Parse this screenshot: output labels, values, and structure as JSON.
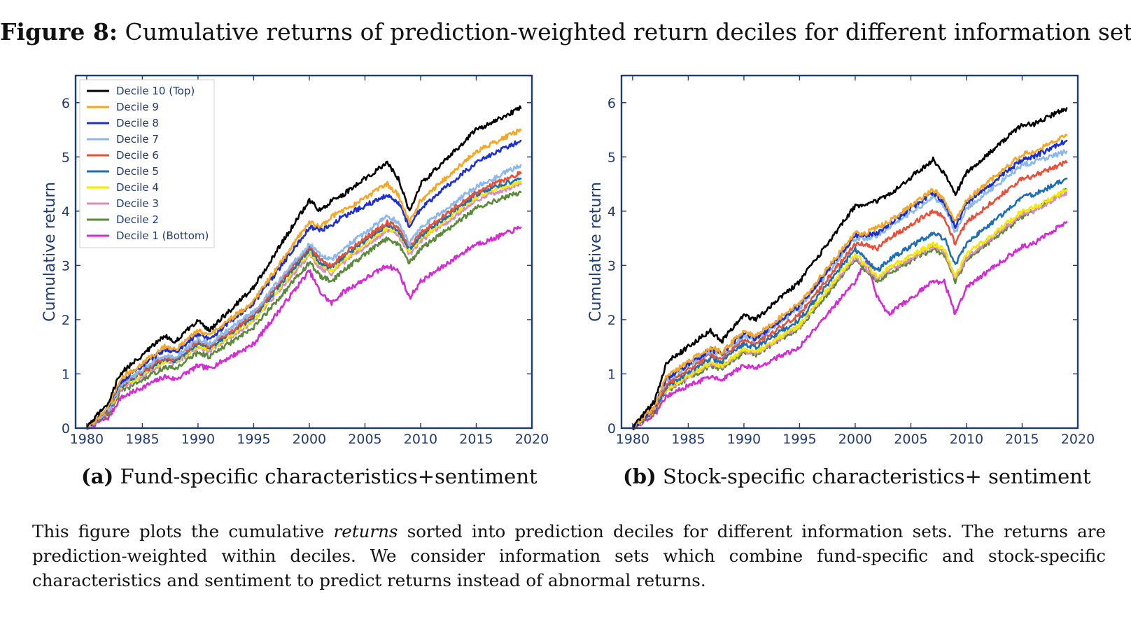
{
  "figure": {
    "label": "Figure 8:",
    "title": "Cumulative returns of prediction-weighted return deciles for different information sets.",
    "description": {
      "part1": "This figure plots the cumulative ",
      "emph": "returns",
      "part2": " sorted into prediction deciles for different information sets. The returns are prediction-weighted within deciles. We consider information sets which combine fund-specific and stock-specific characteristics and sentiment to predict returns instead of abnormal returns."
    }
  },
  "chart_data": [
    {
      "type": "line",
      "panel_label": "(a)",
      "caption": "Fund-specific characteristics+sentiment",
      "ylabel": "Cumulative return",
      "xlabel": "",
      "xlim": [
        1979,
        2020
      ],
      "ylim": [
        0,
        6.5
      ],
      "xticks": [
        1980,
        1985,
        1990,
        1995,
        2000,
        2005,
        2010,
        2015,
        2020
      ],
      "yticks": [
        0,
        1,
        2,
        3,
        4,
        5,
        6
      ],
      "legend": "top-left",
      "x": [
        1980,
        1982,
        1983,
        1987,
        1988,
        1990,
        1991,
        1995,
        2000,
        2001,
        2002,
        2003,
        2007,
        2008,
        2009,
        2010,
        2015,
        2016,
        2019
      ],
      "series": [
        {
          "name": "Decile 10 (Top)",
          "color": "#000000",
          "values": [
            0.0,
            0.5,
            1.0,
            1.7,
            1.6,
            2.0,
            1.8,
            2.6,
            4.2,
            4.0,
            4.2,
            4.3,
            4.9,
            4.6,
            4.0,
            4.5,
            5.5,
            5.6,
            5.9
          ]
        },
        {
          "name": "Decile 9",
          "color": "#f5a623",
          "values": [
            0.0,
            0.4,
            0.9,
            1.5,
            1.45,
            1.8,
            1.7,
            2.35,
            3.8,
            3.7,
            3.9,
            4.0,
            4.5,
            4.3,
            3.8,
            4.2,
            5.1,
            5.2,
            5.5
          ]
        },
        {
          "name": "Decile 8",
          "color": "#1c2ed8",
          "values": [
            0.0,
            0.4,
            0.85,
            1.45,
            1.4,
            1.75,
            1.65,
            2.3,
            3.7,
            3.65,
            3.75,
            3.9,
            4.3,
            4.15,
            3.7,
            4.05,
            4.9,
            5.0,
            5.3
          ]
        },
        {
          "name": "Decile 7",
          "color": "#8ab8f0",
          "values": [
            0.0,
            0.35,
            0.8,
            1.35,
            1.3,
            1.65,
            1.55,
            2.15,
            3.4,
            3.2,
            3.1,
            3.3,
            3.9,
            3.8,
            3.4,
            3.7,
            4.45,
            4.55,
            4.85
          ]
        },
        {
          "name": "Decile 6",
          "color": "#e8503a",
          "values": [
            0.0,
            0.35,
            0.78,
            1.3,
            1.28,
            1.6,
            1.5,
            2.1,
            3.35,
            3.1,
            3.0,
            3.2,
            3.8,
            3.7,
            3.35,
            3.6,
            4.35,
            4.45,
            4.7
          ]
        },
        {
          "name": "Decile 5",
          "color": "#1a6fb8",
          "values": [
            0.0,
            0.33,
            0.76,
            1.28,
            1.25,
            1.57,
            1.48,
            2.05,
            3.3,
            3.05,
            2.95,
            3.15,
            3.75,
            3.65,
            3.3,
            3.55,
            4.3,
            4.4,
            4.6
          ]
        },
        {
          "name": "Decile 4",
          "color": "#f2ea00",
          "values": [
            0.0,
            0.32,
            0.74,
            1.25,
            1.22,
            1.53,
            1.45,
            2.0,
            3.25,
            3.0,
            2.9,
            3.1,
            3.7,
            3.6,
            3.25,
            3.5,
            4.25,
            4.35,
            4.55
          ]
        },
        {
          "name": "Decile 3",
          "color": "#d98cc0",
          "values": [
            0.0,
            0.31,
            0.72,
            1.22,
            1.2,
            1.5,
            1.42,
            1.97,
            3.2,
            2.95,
            2.85,
            3.05,
            3.65,
            3.55,
            3.2,
            3.45,
            4.2,
            4.3,
            4.5
          ]
        },
        {
          "name": "Decile 2",
          "color": "#5a8a3a",
          "values": [
            0.0,
            0.28,
            0.66,
            1.12,
            1.1,
            1.4,
            1.32,
            1.85,
            3.05,
            2.8,
            2.7,
            2.9,
            3.5,
            3.4,
            3.05,
            3.3,
            4.05,
            4.15,
            4.35
          ]
        },
        {
          "name": "Decile 1 (Bottom)",
          "color": "#d62ad6",
          "values": [
            0.0,
            0.2,
            0.55,
            0.95,
            0.9,
            1.15,
            1.1,
            1.55,
            2.9,
            2.5,
            2.3,
            2.5,
            3.0,
            2.9,
            2.4,
            2.7,
            3.4,
            3.45,
            3.7
          ]
        }
      ]
    },
    {
      "type": "line",
      "panel_label": "(b)",
      "caption": "Stock-specific characteristics+ sentiment",
      "ylabel": "Cumulative return",
      "xlabel": "",
      "xlim": [
        1979,
        2020
      ],
      "ylim": [
        0,
        6.5
      ],
      "xticks": [
        1980,
        1985,
        1990,
        1995,
        2000,
        2005,
        2010,
        2015,
        2020
      ],
      "yticks": [
        0,
        1,
        2,
        3,
        4,
        5,
        6
      ],
      "legend": "none",
      "x": [
        1980,
        1982,
        1983,
        1987,
        1988,
        1990,
        1991,
        1995,
        2000,
        2001,
        2002,
        2003,
        2007,
        2008,
        2009,
        2010,
        2015,
        2016,
        2019
      ],
      "series": [
        {
          "name": "Decile 10 (Top)",
          "color": "#000000",
          "values": [
            0.0,
            0.5,
            1.2,
            1.8,
            1.6,
            2.1,
            2.0,
            2.7,
            4.1,
            4.1,
            4.2,
            4.3,
            4.95,
            4.7,
            4.3,
            4.7,
            5.6,
            5.6,
            5.9
          ]
        },
        {
          "name": "Decile 9",
          "color": "#f5a623",
          "values": [
            0.0,
            0.4,
            0.95,
            1.5,
            1.4,
            1.8,
            1.7,
            2.3,
            3.6,
            3.6,
            3.7,
            3.8,
            4.4,
            4.2,
            3.8,
            4.2,
            5.05,
            5.1,
            5.4
          ]
        },
        {
          "name": "Decile 8",
          "color": "#1c2ed8",
          "values": [
            0.0,
            0.4,
            0.9,
            1.45,
            1.38,
            1.75,
            1.65,
            2.25,
            3.55,
            3.55,
            3.6,
            3.75,
            4.35,
            4.15,
            3.7,
            4.15,
            4.95,
            5.0,
            5.3
          ]
        },
        {
          "name": "Decile 7",
          "color": "#8ab8f0",
          "values": [
            0.0,
            0.38,
            0.88,
            1.42,
            1.35,
            1.72,
            1.62,
            2.2,
            3.5,
            3.5,
            3.55,
            3.7,
            4.25,
            4.1,
            3.6,
            4.05,
            4.85,
            4.9,
            5.1
          ]
        },
        {
          "name": "Decile 6",
          "color": "#e8503a",
          "values": [
            0.0,
            0.35,
            0.8,
            1.35,
            1.3,
            1.65,
            1.55,
            2.1,
            3.4,
            3.4,
            3.3,
            3.5,
            4.0,
            3.9,
            3.4,
            3.8,
            4.6,
            4.65,
            4.9
          ]
        },
        {
          "name": "Decile 5",
          "color": "#1a6fb8",
          "values": [
            0.0,
            0.33,
            0.75,
            1.28,
            1.22,
            1.55,
            1.48,
            2.0,
            3.3,
            3.1,
            2.9,
            3.1,
            3.6,
            3.5,
            3.0,
            3.4,
            4.25,
            4.3,
            4.6
          ]
        },
        {
          "name": "Decile 4",
          "color": "#f2ea00",
          "values": [
            0.0,
            0.32,
            0.72,
            1.2,
            1.15,
            1.45,
            1.4,
            1.9,
            3.2,
            3.0,
            2.8,
            2.95,
            3.4,
            3.3,
            2.8,
            3.2,
            4.0,
            4.05,
            4.4
          ]
        },
        {
          "name": "Decile 3",
          "color": "#d98cc0",
          "values": [
            0.0,
            0.31,
            0.7,
            1.18,
            1.13,
            1.43,
            1.38,
            1.88,
            3.15,
            2.95,
            2.75,
            2.9,
            3.35,
            3.25,
            2.75,
            3.15,
            3.95,
            4.0,
            4.35
          ]
        },
        {
          "name": "Decile 2",
          "color": "#5a8a3a",
          "values": [
            0.0,
            0.3,
            0.68,
            1.15,
            1.1,
            1.4,
            1.35,
            1.85,
            3.1,
            2.9,
            2.7,
            2.85,
            3.3,
            3.2,
            2.7,
            3.1,
            3.9,
            4.0,
            4.4
          ]
        },
        {
          "name": "Decile 1 (Bottom)",
          "color": "#d62ad6",
          "values": [
            0.0,
            0.25,
            0.6,
            0.95,
            0.9,
            1.15,
            1.1,
            1.5,
            2.7,
            3.1,
            2.4,
            2.1,
            2.7,
            2.7,
            2.1,
            2.6,
            3.35,
            3.4,
            3.8
          ]
        }
      ]
    }
  ]
}
